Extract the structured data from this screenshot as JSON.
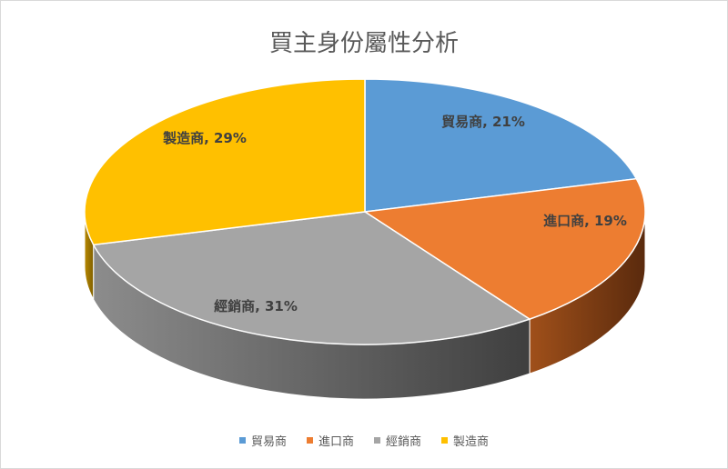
{
  "chart_data": {
    "type": "pie",
    "title": "買主身份屬性分析",
    "categories": [
      "貿易商",
      "進口商",
      "經銷商",
      "製造商"
    ],
    "values": [
      21,
      19,
      31,
      29
    ],
    "value_format": "percent",
    "data_labels": [
      "貿易商, 21%",
      "進口商, 19%",
      "經銷商, 31%",
      "製造商, 29%"
    ],
    "colors": [
      "#5b9bd5",
      "#ed7d31",
      "#a5a5a5",
      "#ffc000"
    ],
    "style": "3d",
    "legend": "bottom"
  }
}
